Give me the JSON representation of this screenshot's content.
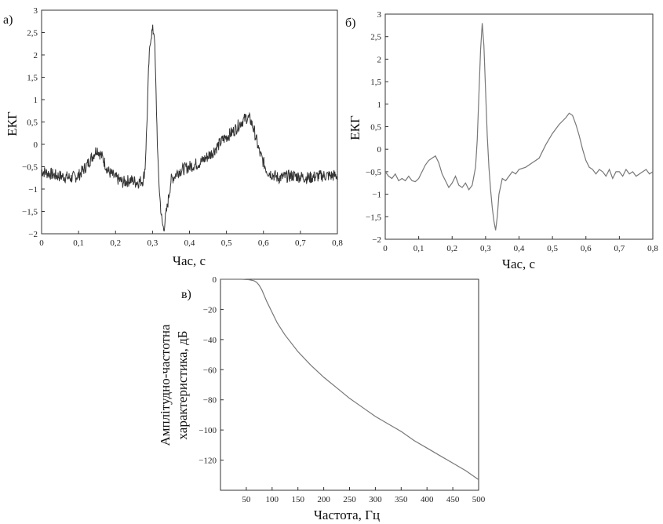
{
  "chart_data": [
    {
      "type": "line",
      "panel_label": "а)",
      "xlabel": "Час, с",
      "ylabel": "ЕКГ",
      "xlim": [
        0,
        0.8
      ],
      "ylim": [
        -2,
        3
      ],
      "xticks": [
        0,
        0.1,
        0.2,
        0.3,
        0.4,
        0.5,
        0.6,
        0.7,
        0.8
      ],
      "xtick_labels": [
        "0",
        "0,1",
        "0,2",
        "0,3",
        "0,4",
        "0,5",
        "0,6",
        "0,7",
        "0,8"
      ],
      "yticks": [
        -2,
        -1.5,
        -1,
        -0.5,
        0,
        0.5,
        1,
        1.5,
        2,
        2.5,
        3
      ],
      "ytick_labels": [
        "−2",
        "−1,5",
        "−1",
        "−0,5",
        "0",
        "0,5",
        "1",
        "1,5",
        "2",
        "2,5",
        "3"
      ],
      "line_color": "#333333",
      "noisy": true,
      "series": [
        {
          "x": [
            0,
            0.02,
            0.04,
            0.06,
            0.08,
            0.1,
            0.12,
            0.135,
            0.15,
            0.165,
            0.18,
            0.2,
            0.22,
            0.24,
            0.26,
            0.275,
            0.28,
            0.285,
            0.29,
            0.295,
            0.3,
            0.305,
            0.31,
            0.315,
            0.32,
            0.325,
            0.33,
            0.34,
            0.35,
            0.37,
            0.4,
            0.43,
            0.46,
            0.49,
            0.52,
            0.54,
            0.555,
            0.565,
            0.575,
            0.59,
            0.61,
            0.64,
            0.68,
            0.72,
            0.76,
            0.8
          ],
          "y": [
            -0.6,
            -0.65,
            -0.7,
            -0.72,
            -0.75,
            -0.7,
            -0.5,
            -0.3,
            -0.1,
            -0.3,
            -0.6,
            -0.75,
            -0.85,
            -0.8,
            -0.85,
            -0.8,
            -0.5,
            0.5,
            1.8,
            2.4,
            2.55,
            2.5,
            1.0,
            -0.5,
            -1.2,
            -1.7,
            -1.9,
            -1.4,
            -0.8,
            -0.6,
            -0.5,
            -0.4,
            -0.2,
            0.1,
            0.3,
            0.5,
            0.6,
            0.55,
            0.3,
            -0.2,
            -0.6,
            -0.75,
            -0.7,
            -0.75,
            -0.7,
            -0.7
          ]
        }
      ]
    },
    {
      "type": "line",
      "panel_label": "б)",
      "xlabel": "Час, с",
      "ylabel": "ЕКГ",
      "xlim": [
        0,
        0.8
      ],
      "ylim": [
        -2,
        3
      ],
      "xticks": [
        0,
        0.1,
        0.2,
        0.3,
        0.4,
        0.5,
        0.6,
        0.7,
        0.8
      ],
      "xtick_labels": [
        "0",
        "0,1",
        "0,2",
        "0,3",
        "0,4",
        "0,5",
        "0,6",
        "0,7",
        "0,8"
      ],
      "yticks": [
        -2,
        -1.5,
        -1,
        -0.5,
        0,
        0.5,
        1,
        1.5,
        2,
        2.5,
        3
      ],
      "ytick_labels": [
        "−2",
        "−1,5",
        "−1",
        "−0,5",
        "0",
        "0,5",
        "1",
        "1,5",
        "2",
        "2,5",
        "3"
      ],
      "line_color": "#777777",
      "noisy": false,
      "series": [
        {
          "x": [
            0,
            0.01,
            0.02,
            0.03,
            0.04,
            0.05,
            0.06,
            0.07,
            0.08,
            0.09,
            0.1,
            0.11,
            0.12,
            0.13,
            0.14,
            0.15,
            0.16,
            0.17,
            0.18,
            0.19,
            0.2,
            0.21,
            0.22,
            0.23,
            0.24,
            0.25,
            0.26,
            0.27,
            0.275,
            0.28,
            0.285,
            0.29,
            0.295,
            0.3,
            0.305,
            0.31,
            0.315,
            0.32,
            0.325,
            0.33,
            0.335,
            0.34,
            0.35,
            0.36,
            0.37,
            0.38,
            0.39,
            0.4,
            0.42,
            0.44,
            0.46,
            0.48,
            0.5,
            0.52,
            0.54,
            0.55,
            0.56,
            0.57,
            0.58,
            0.59,
            0.6,
            0.61,
            0.62,
            0.63,
            0.64,
            0.65,
            0.66,
            0.67,
            0.68,
            0.69,
            0.7,
            0.71,
            0.72,
            0.73,
            0.74,
            0.75,
            0.76,
            0.77,
            0.78,
            0.79,
            0.8
          ],
          "y": [
            -0.5,
            -0.6,
            -0.65,
            -0.55,
            -0.7,
            -0.65,
            -0.7,
            -0.6,
            -0.7,
            -0.72,
            -0.65,
            -0.5,
            -0.35,
            -0.25,
            -0.2,
            -0.15,
            -0.3,
            -0.55,
            -0.7,
            -0.85,
            -0.75,
            -0.6,
            -0.8,
            -0.85,
            -0.75,
            -0.9,
            -0.8,
            -0.4,
            0.2,
            1.2,
            2.2,
            2.8,
            2.3,
            1.3,
            0.3,
            -0.4,
            -0.9,
            -1.3,
            -1.6,
            -1.8,
            -1.5,
            -1.0,
            -0.65,
            -0.7,
            -0.6,
            -0.5,
            -0.55,
            -0.45,
            -0.4,
            -0.3,
            -0.2,
            0.1,
            0.35,
            0.55,
            0.7,
            0.8,
            0.75,
            0.55,
            0.3,
            0.0,
            -0.25,
            -0.4,
            -0.45,
            -0.55,
            -0.45,
            -0.5,
            -0.6,
            -0.45,
            -0.65,
            -0.5,
            -0.5,
            -0.6,
            -0.45,
            -0.55,
            -0.5,
            -0.6,
            -0.55,
            -0.5,
            -0.45,
            -0.55,
            -0.5
          ]
        }
      ]
    },
    {
      "type": "line",
      "panel_label": "в)",
      "xlabel": "Частота, Гц",
      "ylabel": [
        "Амплітудно-частотна",
        "характеристика, дБ"
      ],
      "xlim": [
        0,
        500
      ],
      "ylim": [
        -140,
        0
      ],
      "xticks": [
        50,
        100,
        150,
        200,
        250,
        300,
        350,
        400,
        450,
        500
      ],
      "xtick_labels": [
        "50",
        "100",
        "150",
        "200",
        "250",
        "300",
        "350",
        "400",
        "450",
        "500"
      ],
      "yticks": [
        0,
        -20,
        -40,
        -60,
        -80,
        -100,
        -120
      ],
      "ytick_labels": [
        "0",
        "−20",
        "−40",
        "−60",
        "−80",
        "−100",
        "−120"
      ],
      "line_color": "#777777",
      "noisy": false,
      "series": [
        {
          "x": [
            0,
            20,
            40,
            55,
            65,
            70,
            75,
            80,
            90,
            100,
            110,
            125,
            150,
            175,
            200,
            225,
            250,
            275,
            300,
            325,
            350,
            375,
            400,
            425,
            450,
            475,
            500
          ],
          "y": [
            0,
            0,
            0,
            -0.3,
            -1,
            -2,
            -4,
            -7,
            -15,
            -22,
            -29,
            -37,
            -48,
            -57,
            -65,
            -72,
            -79,
            -85,
            -91,
            -96,
            -101,
            -107,
            -112,
            -117,
            -122,
            -127,
            -133
          ]
        }
      ]
    }
  ]
}
